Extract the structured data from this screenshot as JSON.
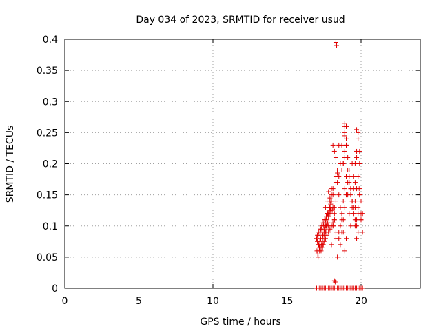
{
  "chart_data": {
    "type": "scatter",
    "title": "Day 034 of 2023, SRMTID for receiver usud",
    "xlabel": "GPS time / hours",
    "ylabel": "SRMTID / TECUs",
    "xlim": [
      0,
      24
    ],
    "ylim": [
      0,
      0.4
    ],
    "xticks": [
      0,
      5,
      10,
      15,
      20
    ],
    "xtick_labels": [
      "0",
      "5",
      "10",
      "15",
      "20"
    ],
    "yticks": [
      0,
      0.05,
      0.1,
      0.15,
      0.2,
      0.25,
      0.3,
      0.35,
      0.4
    ],
    "ytick_labels": [
      "0",
      "0.05",
      "0.1",
      "0.15",
      "0.2",
      "0.25",
      "0.3",
      "0.35",
      "0.4"
    ],
    "grid": true,
    "marker": "+",
    "series": [
      {
        "name": "SRMTID",
        "color": "#e00000",
        "x": [
          17.0,
          17.05,
          17.1,
          17.15,
          17.2,
          17.25,
          17.3,
          17.35,
          17.4,
          17.45,
          17.5,
          17.55,
          17.6,
          17.65,
          17.7,
          17.75,
          17.8,
          17.85,
          17.9,
          17.95,
          18.0,
          18.05,
          18.1,
          18.15,
          18.2,
          17.02,
          17.08,
          17.12,
          17.18,
          17.22,
          17.28,
          17.32,
          17.38,
          17.42,
          17.48,
          17.52,
          17.58,
          17.62,
          17.68,
          17.72,
          17.78,
          17.82,
          17.88,
          17.92,
          17.98,
          17.1,
          17.2,
          17.3,
          17.4,
          17.5,
          17.6,
          17.7,
          17.8,
          17.9,
          18.0,
          18.1,
          17.05,
          17.15,
          17.25,
          17.35,
          17.45,
          17.55,
          17.65,
          17.75,
          17.85,
          17.95,
          17.3,
          17.4,
          17.5,
          17.6,
          17.7,
          17.8,
          17.9,
          18.0,
          18.1,
          18.2,
          18.3,
          17.6,
          17.7,
          17.8,
          17.9,
          18.0,
          18.1,
          18.2,
          18.3,
          18.4,
          18.5,
          18.0,
          18.1,
          18.2,
          18.3,
          18.4,
          18.5,
          18.6,
          18.7,
          18.8,
          18.9,
          19.0,
          18.5,
          18.6,
          18.7,
          18.8,
          18.9,
          19.0,
          19.1,
          19.2,
          19.3,
          19.4,
          19.5,
          19.6,
          19.7,
          19.8,
          19.9,
          20.0,
          18.6,
          18.7,
          18.8,
          18.9,
          19.0,
          19.1,
          19.2,
          19.3,
          19.4,
          19.5,
          19.6,
          19.7,
          19.8,
          19.9,
          20.0,
          20.1,
          18.8,
          18.9,
          19.0,
          19.1,
          19.2,
          19.3,
          19.4,
          19.5,
          19.6,
          19.7,
          19.8,
          19.9,
          20.0,
          18.9,
          19.0,
          19.1,
          19.2,
          19.3,
          19.4,
          19.5,
          19.6,
          19.7,
          19.8,
          19.9,
          20.0,
          20.1,
          18.2,
          18.3,
          18.5,
          18.8,
          18.9,
          19.0,
          19.5,
          19.7,
          19.8,
          19.9,
          18.3,
          18.4,
          18.6,
          18.7,
          18.9,
          19.0,
          19.6,
          19.7,
          19.8,
          18.5,
          18.7,
          18.9,
          19.0,
          19.4,
          19.7,
          19.8,
          18.1,
          18.3,
          18.4,
          18.9,
          19.0,
          19.6,
          18.3,
          18.35,
          18.2,
          18.25,
          17.0,
          17.1,
          17.2,
          17.3,
          17.4,
          17.5,
          17.6,
          17.7,
          17.8,
          17.9,
          18.0,
          18.1,
          18.2,
          18.3,
          18.4,
          18.5,
          18.6,
          18.7,
          18.8,
          18.9,
          19.0,
          19.1,
          19.2,
          19.3,
          19.4,
          19.5,
          19.6,
          19.7,
          19.8,
          19.9,
          20.0,
          20.1
        ],
        "y": [
          0.08,
          0.075,
          0.085,
          0.07,
          0.065,
          0.09,
          0.095,
          0.1,
          0.08,
          0.07,
          0.085,
          0.11,
          0.09,
          0.1,
          0.12,
          0.105,
          0.115,
          0.13,
          0.12,
          0.135,
          0.14,
          0.125,
          0.13,
          0.1,
          0.11,
          0.06,
          0.055,
          0.07,
          0.065,
          0.075,
          0.08,
          0.07,
          0.09,
          0.085,
          0.1,
          0.095,
          0.105,
          0.11,
          0.09,
          0.12,
          0.1,
          0.115,
          0.13,
          0.125,
          0.14,
          0.05,
          0.06,
          0.065,
          0.07,
          0.075,
          0.08,
          0.085,
          0.09,
          0.095,
          0.1,
          0.105,
          0.085,
          0.09,
          0.095,
          0.1,
          0.105,
          0.11,
          0.115,
          0.12,
          0.125,
          0.13,
          0.06,
          0.065,
          0.09,
          0.1,
          0.11,
          0.12,
          0.14,
          0.15,
          0.16,
          0.13,
          0.09,
          0.13,
          0.14,
          0.155,
          0.145,
          0.16,
          0.15,
          0.11,
          0.08,
          0.05,
          0.09,
          0.07,
          0.1,
          0.12,
          0.14,
          0.17,
          0.15,
          0.13,
          0.11,
          0.09,
          0.06,
          0.08,
          0.08,
          0.1,
          0.12,
          0.14,
          0.16,
          0.18,
          0.15,
          0.12,
          0.1,
          0.14,
          0.16,
          0.13,
          0.11,
          0.09,
          0.15,
          0.14,
          0.07,
          0.09,
          0.11,
          0.13,
          0.15,
          0.17,
          0.19,
          0.16,
          0.14,
          0.12,
          0.1,
          0.08,
          0.12,
          0.16,
          0.11,
          0.09,
          0.2,
          0.21,
          0.23,
          0.19,
          0.17,
          0.15,
          0.13,
          0.12,
          0.14,
          0.16,
          0.18,
          0.2,
          0.12,
          0.22,
          0.24,
          0.21,
          0.18,
          0.16,
          0.14,
          0.13,
          0.11,
          0.1,
          0.13,
          0.15,
          0.11,
          0.12,
          0.22,
          0.21,
          0.18,
          0.2,
          0.25,
          0.26,
          0.18,
          0.21,
          0.24,
          0.22,
          0.17,
          0.19,
          0.2,
          0.23,
          0.26,
          0.24,
          0.2,
          0.255,
          0.25,
          0.23,
          0.19,
          0.265,
          0.23,
          0.2,
          0.22,
          0.16,
          0.23,
          0.18,
          0.185,
          0.245,
          0.26,
          0.17,
          0.395,
          0.39,
          0.012,
          0.01,
          0.0,
          0.0,
          0.0,
          0.0,
          0.0,
          0.0,
          0.0,
          0.0,
          0.0,
          0.0,
          0.0,
          0.0,
          0.0,
          0.0,
          0.0,
          0.0,
          0.0,
          0.0,
          0.0,
          0.0,
          0.0,
          0.0,
          0.0,
          0.0,
          0.0,
          0.0,
          0.0,
          0.0,
          0.0,
          0.0,
          0.0,
          0.0
        ]
      }
    ]
  }
}
